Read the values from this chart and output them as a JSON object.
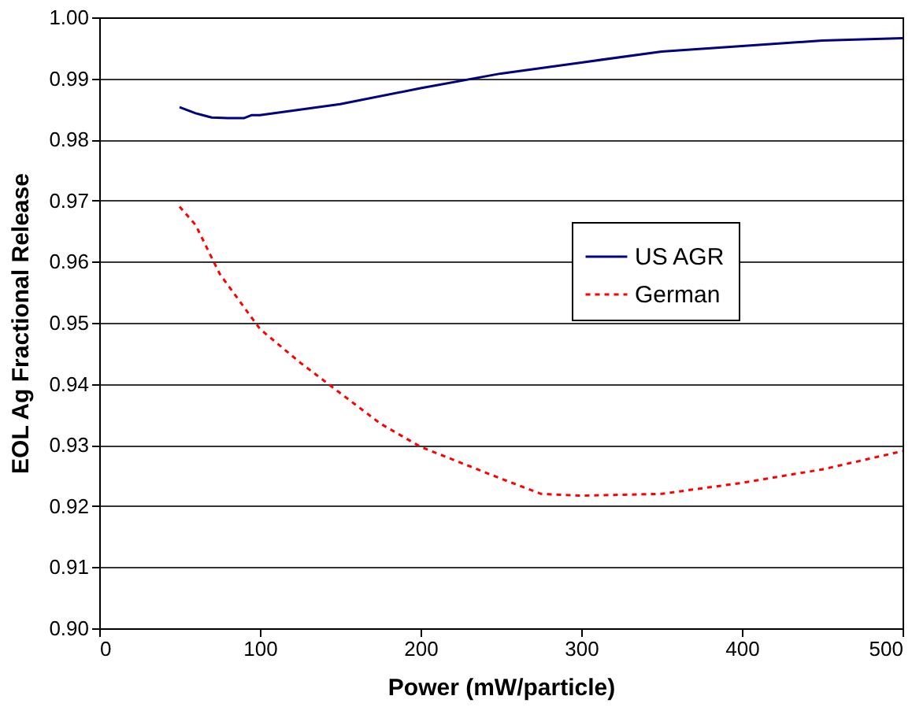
{
  "chart_data": {
    "type": "line",
    "xlabel": "Power (mW/particle)",
    "ylabel": "EOL Ag Fractional Release",
    "xlim": [
      0,
      500
    ],
    "xticks": [
      0,
      100,
      200,
      300,
      400,
      500
    ],
    "ylim": [
      0.9,
      1.0
    ],
    "yticks": [
      {
        "value": 0.9,
        "label": "0.90"
      },
      {
        "value": 0.91,
        "label": "0.91"
      },
      {
        "value": 0.92,
        "label": "0.92"
      },
      {
        "value": 0.93,
        "label": "0.93"
      },
      {
        "value": 0.94,
        "label": "0.94"
      },
      {
        "value": 0.95,
        "label": "0.95"
      },
      {
        "value": 0.96,
        "label": "0.96"
      },
      {
        "value": 0.97,
        "label": "0.97"
      },
      {
        "value": 0.98,
        "label": "0.98"
      },
      {
        "value": 0.99,
        "label": "0.99"
      },
      {
        "value": 1.0,
        "label": "1.00"
      }
    ],
    "grid": "y",
    "legend": "right",
    "marker": "none",
    "series": [
      {
        "name": "US AGR",
        "color": "#000080",
        "line_style": "solid",
        "x": [
          50,
          60,
          70,
          80,
          90,
          95,
          100,
          150,
          200,
          250,
          300,
          350,
          400,
          450,
          500
        ],
        "values": [
          0.9853,
          0.9843,
          0.9836,
          0.9835,
          0.9835,
          0.984,
          0.984,
          0.9858,
          0.9884,
          0.9908,
          0.9926,
          0.9944,
          0.9953,
          0.9962,
          0.9966
        ]
      },
      {
        "name": "German",
        "color": "#ff0000",
        "line_style": "dotted",
        "x": [
          50,
          60,
          75,
          100,
          125,
          150,
          175,
          200,
          250,
          275,
          300,
          350,
          400,
          450,
          500
        ],
        "values": [
          0.969,
          0.966,
          0.958,
          0.949,
          0.9435,
          0.9385,
          0.9335,
          0.9297,
          0.9245,
          0.922,
          0.9217,
          0.922,
          0.9238,
          0.926,
          0.929
        ]
      }
    ]
  }
}
